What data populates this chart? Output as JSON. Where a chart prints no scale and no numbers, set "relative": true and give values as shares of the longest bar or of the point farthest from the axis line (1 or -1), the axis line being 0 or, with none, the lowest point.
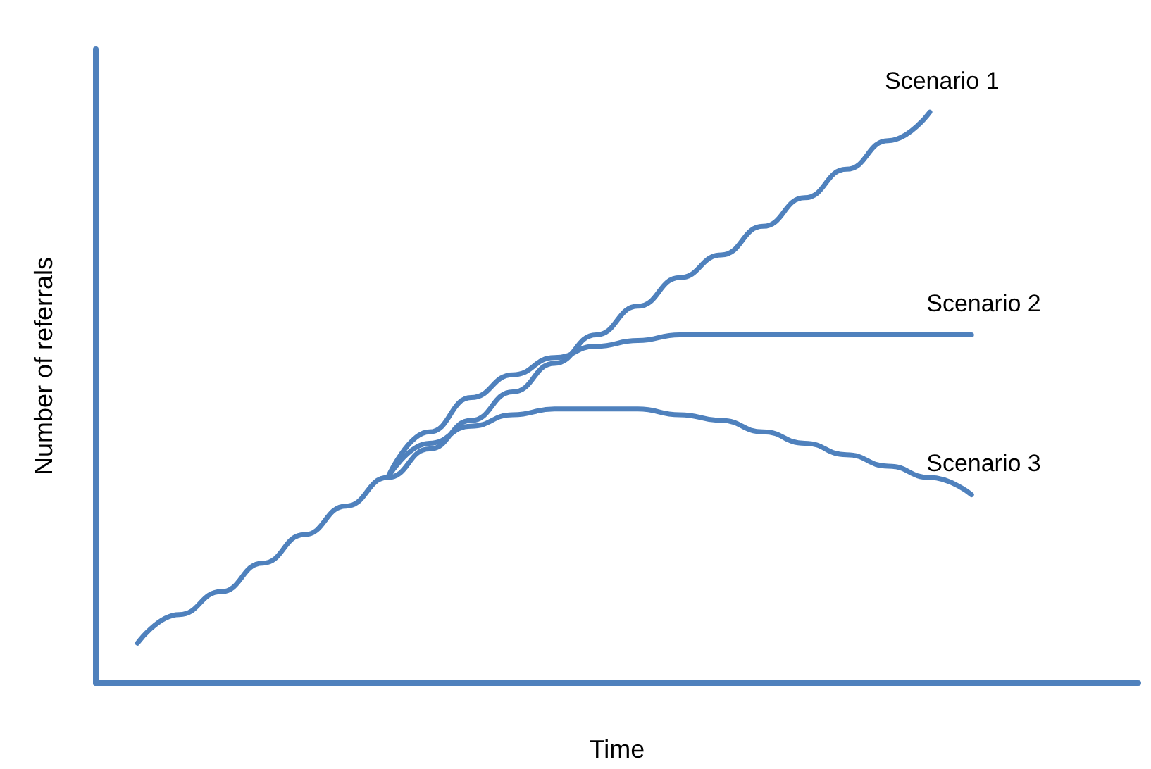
{
  "chart_data": {
    "type": "line",
    "relative": true,
    "xlabel": "Time",
    "ylabel": "Number of referrals",
    "legend": false,
    "grid": false,
    "marker": "none",
    "line_style": "solid",
    "categories": [
      null,
      null,
      null,
      null,
      null,
      null,
      null,
      null,
      null,
      null,
      null,
      null,
      null,
      null,
      null,
      null,
      null,
      null,
      null,
      null,
      null,
      null,
      null,
      null,
      null,
      null
    ],
    "series": [
      {
        "name": "Scenario 1",
        "color": "#4f81bd",
        "values": [
          null,
          0.07,
          0.12,
          0.16,
          0.21,
          0.26,
          0.31,
          0.36,
          0.41,
          0.46,
          0.51,
          0.56,
          0.61,
          0.66,
          0.71,
          0.75,
          0.8,
          0.85,
          0.9,
          0.95,
          1,
          null,
          null,
          null,
          null,
          null
        ]
      },
      {
        "name": "Scenario 2",
        "color": "#4f81bd",
        "values": [
          null,
          null,
          null,
          null,
          null,
          null,
          null,
          0.36,
          0.44,
          0.5,
          0.54,
          0.57,
          0.59,
          0.6,
          0.61,
          0.61,
          0.61,
          0.61,
          0.61,
          0.61,
          0.61,
          0.61,
          null,
          null,
          null,
          null
        ]
      },
      {
        "name": "Scenario 3",
        "color": "#4f81bd",
        "values": [
          null,
          null,
          null,
          null,
          null,
          null,
          null,
          0.36,
          0.42,
          0.45,
          0.47,
          0.48,
          0.48,
          0.48,
          0.47,
          0.46,
          0.44,
          0.42,
          0.4,
          0.38,
          0.36,
          0.33,
          null,
          null,
          null,
          null
        ]
      }
    ]
  }
}
